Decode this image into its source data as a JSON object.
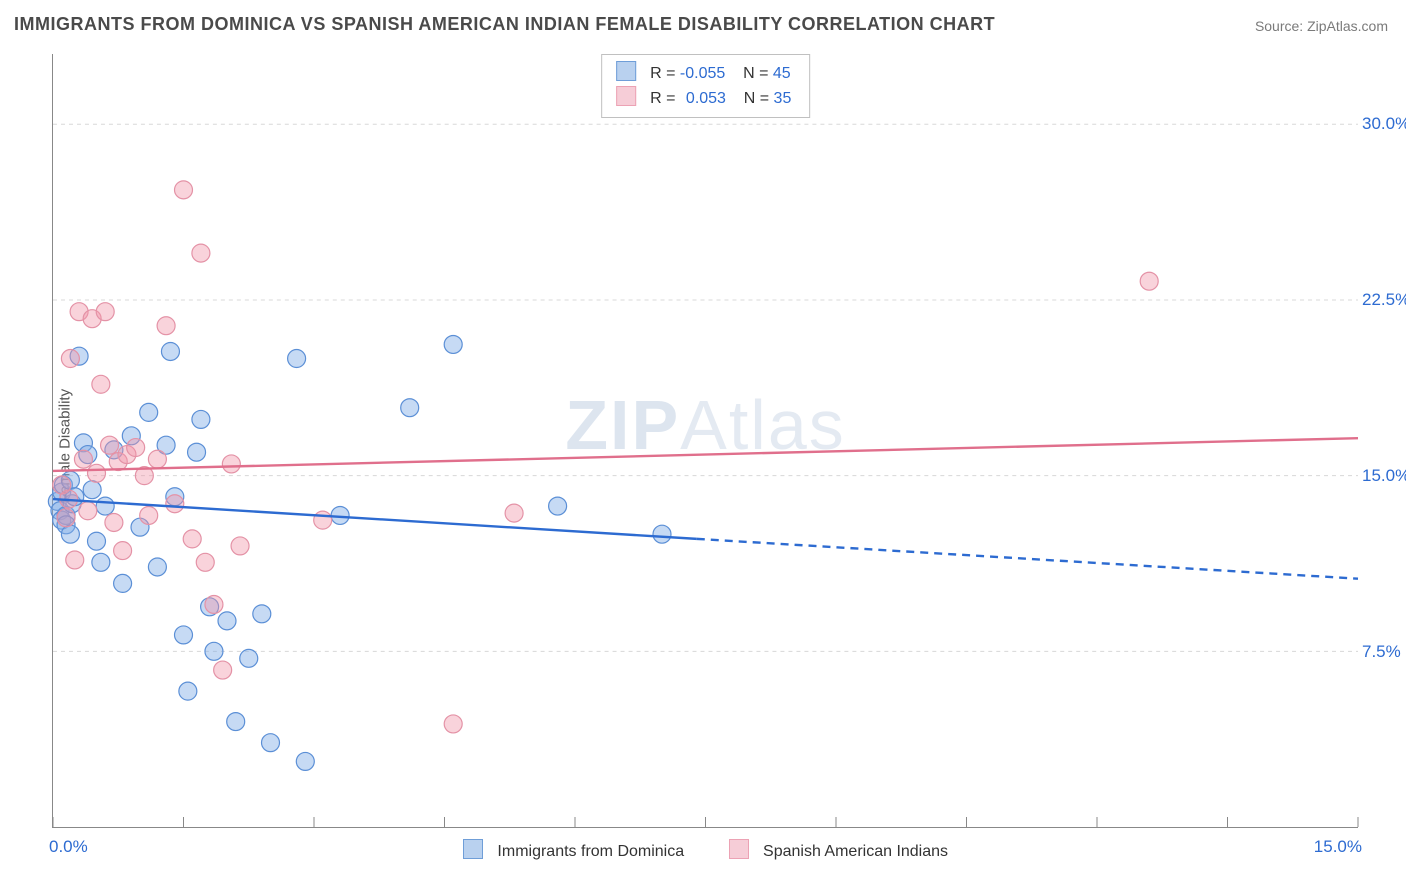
{
  "title": "IMMIGRANTS FROM DOMINICA VS SPANISH AMERICAN INDIAN FEMALE DISABILITY CORRELATION CHART",
  "source_label": "Source: ZipAtlas.com",
  "watermark": {
    "bold": "ZIP",
    "thin": "Atlas"
  },
  "ylabel": "Female Disability",
  "chart": {
    "type": "scatter-correlation",
    "xlim": [
      0,
      15
    ],
    "ylim": [
      0,
      33
    ],
    "x_ticks_minor": [
      0,
      1.5,
      3.0,
      4.5,
      6.0,
      7.5,
      9.0,
      10.5,
      12.0,
      13.5,
      15.0
    ],
    "x_tick_labels": [
      {
        "pos": 0,
        "label": "0.0%"
      },
      {
        "pos": 15,
        "label": "15.0%"
      }
    ],
    "y_gridlines": [
      7.5,
      15.0,
      22.5,
      30.0
    ],
    "y_tick_labels": [
      {
        "pos": 7.5,
        "label": "7.5%"
      },
      {
        "pos": 15.0,
        "label": "15.0%"
      },
      {
        "pos": 22.5,
        "label": "22.5%"
      },
      {
        "pos": 30.0,
        "label": "30.0%"
      }
    ],
    "grid_color": "#d8d8d8",
    "grid_dash": "4 4",
    "axis_color": "#888888",
    "background_color": "#ffffff",
    "marker_radius": 9,
    "marker_stroke_width": 1.2,
    "trend_line_width": 2.4,
    "series": [
      {
        "key": "dominica",
        "name": "Immigrants from Dominica",
        "fill": "rgba(128, 172, 230, 0.45)",
        "stroke": "#5b8fd6",
        "swatch_fill": "#b9d1ef",
        "swatch_border": "#6f9ed8",
        "R": "-0.055",
        "N": "45",
        "trend": {
          "x1": 0,
          "y1": 14.0,
          "x_solid_end": 7.4,
          "y_solid_end": 12.3,
          "x2": 15,
          "y2": 10.6,
          "color": "#2d6bd1"
        },
        "points": [
          [
            0.05,
            13.9
          ],
          [
            0.08,
            13.5
          ],
          [
            0.1,
            14.3
          ],
          [
            0.1,
            13.1
          ],
          [
            0.12,
            14.6
          ],
          [
            0.15,
            13.3
          ],
          [
            0.15,
            12.9
          ],
          [
            0.2,
            14.8
          ],
          [
            0.2,
            12.5
          ],
          [
            0.22,
            13.8
          ],
          [
            0.25,
            14.1
          ],
          [
            0.3,
            20.1
          ],
          [
            0.35,
            16.4
          ],
          [
            0.4,
            15.9
          ],
          [
            0.45,
            14.4
          ],
          [
            0.5,
            12.2
          ],
          [
            0.55,
            11.3
          ],
          [
            0.6,
            13.7
          ],
          [
            0.7,
            16.1
          ],
          [
            0.8,
            10.4
          ],
          [
            0.9,
            16.7
          ],
          [
            1.0,
            12.8
          ],
          [
            1.1,
            17.7
          ],
          [
            1.2,
            11.1
          ],
          [
            1.3,
            16.3
          ],
          [
            1.35,
            20.3
          ],
          [
            1.4,
            14.1
          ],
          [
            1.5,
            8.2
          ],
          [
            1.55,
            5.8
          ],
          [
            1.65,
            16.0
          ],
          [
            1.7,
            17.4
          ],
          [
            1.8,
            9.4
          ],
          [
            1.85,
            7.5
          ],
          [
            2.0,
            8.8
          ],
          [
            2.1,
            4.5
          ],
          [
            2.25,
            7.2
          ],
          [
            2.4,
            9.1
          ],
          [
            2.5,
            3.6
          ],
          [
            2.8,
            20.0
          ],
          [
            2.9,
            2.8
          ],
          [
            3.3,
            13.3
          ],
          [
            4.1,
            17.9
          ],
          [
            4.6,
            20.6
          ],
          [
            5.8,
            13.7
          ],
          [
            7.0,
            12.5
          ]
        ]
      },
      {
        "key": "spanish_ai",
        "name": "Spanish American Indians",
        "fill": "rgba(240, 150, 170, 0.42)",
        "stroke": "#e492a6",
        "swatch_fill": "#f6cdd7",
        "swatch_border": "#eca2b4",
        "R": "0.053",
        "N": "35",
        "trend": {
          "x1": 0,
          "y1": 15.2,
          "x_solid_end": 15,
          "y_solid_end": 16.6,
          "x2": 15,
          "y2": 16.6,
          "color": "#e06f8c"
        },
        "points": [
          [
            0.1,
            14.6
          ],
          [
            0.15,
            13.2
          ],
          [
            0.18,
            14.0
          ],
          [
            0.2,
            20.0
          ],
          [
            0.25,
            11.4
          ],
          [
            0.3,
            22.0
          ],
          [
            0.35,
            15.7
          ],
          [
            0.4,
            13.5
          ],
          [
            0.45,
            21.7
          ],
          [
            0.5,
            15.1
          ],
          [
            0.55,
            18.9
          ],
          [
            0.6,
            22.0
          ],
          [
            0.65,
            16.3
          ],
          [
            0.7,
            13.0
          ],
          [
            0.75,
            15.6
          ],
          [
            0.8,
            11.8
          ],
          [
            0.85,
            15.9
          ],
          [
            0.95,
            16.2
          ],
          [
            1.05,
            15.0
          ],
          [
            1.1,
            13.3
          ],
          [
            1.2,
            15.7
          ],
          [
            1.3,
            21.4
          ],
          [
            1.4,
            13.8
          ],
          [
            1.5,
            27.2
          ],
          [
            1.6,
            12.3
          ],
          [
            1.7,
            24.5
          ],
          [
            1.75,
            11.3
          ],
          [
            1.85,
            9.5
          ],
          [
            1.95,
            6.7
          ],
          [
            2.05,
            15.5
          ],
          [
            2.15,
            12.0
          ],
          [
            3.1,
            13.1
          ],
          [
            4.6,
            4.4
          ],
          [
            5.3,
            13.4
          ],
          [
            12.6,
            23.3
          ]
        ]
      }
    ],
    "legend_labels": {
      "R_prefix": "R =",
      "N_prefix": "N ="
    }
  }
}
